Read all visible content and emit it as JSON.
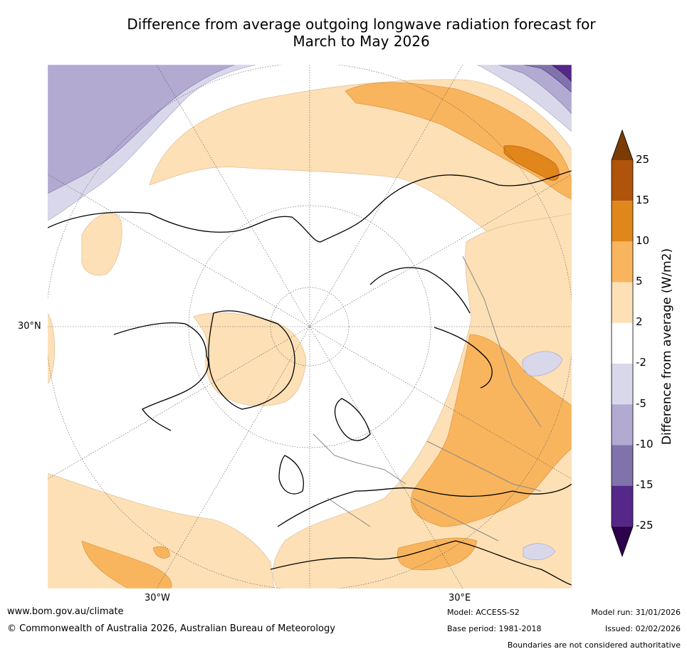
{
  "title": {
    "line1": "Difference from average outgoing longwave radiation forecast for",
    "line2": "March to May 2026"
  },
  "axis_labels": {
    "lat_30n": "30°N",
    "lon_30w": "30°W",
    "lon_30e": "30°E"
  },
  "colorbar": {
    "title": "Difference from average (W/m2)",
    "ticks": [
      "25",
      "15",
      "10",
      "5",
      "2",
      "-2",
      "-5",
      "-10",
      "-15",
      "-25"
    ],
    "colors": {
      "above_25": "#7a3b05",
      "15_25": "#b0540b",
      "10_15": "#e0861a",
      "5_10": "#f9b55e",
      "2_5": "#fde0b6",
      "neutral": "#ffffff",
      "m5_m2": "#d8d8ea",
      "m10_m5": "#b2aad1",
      "m15_m10": "#8073ac",
      "m25_m15": "#542788",
      "below_m25": "#2d004b"
    }
  },
  "footer": {
    "website": "www.bom.gov.au/climate",
    "copyright": "© Commonwealth of Australia 2026, Australian Bureau of Meteorology",
    "model": "Model: ACCESS-S2",
    "base_period": "Base period: 1981-2018",
    "model_run": "Model run: 31/01/2026",
    "issued": "Issued: 02/02/2026",
    "disclaimer": "Boundaries are not considered authoritative"
  }
}
